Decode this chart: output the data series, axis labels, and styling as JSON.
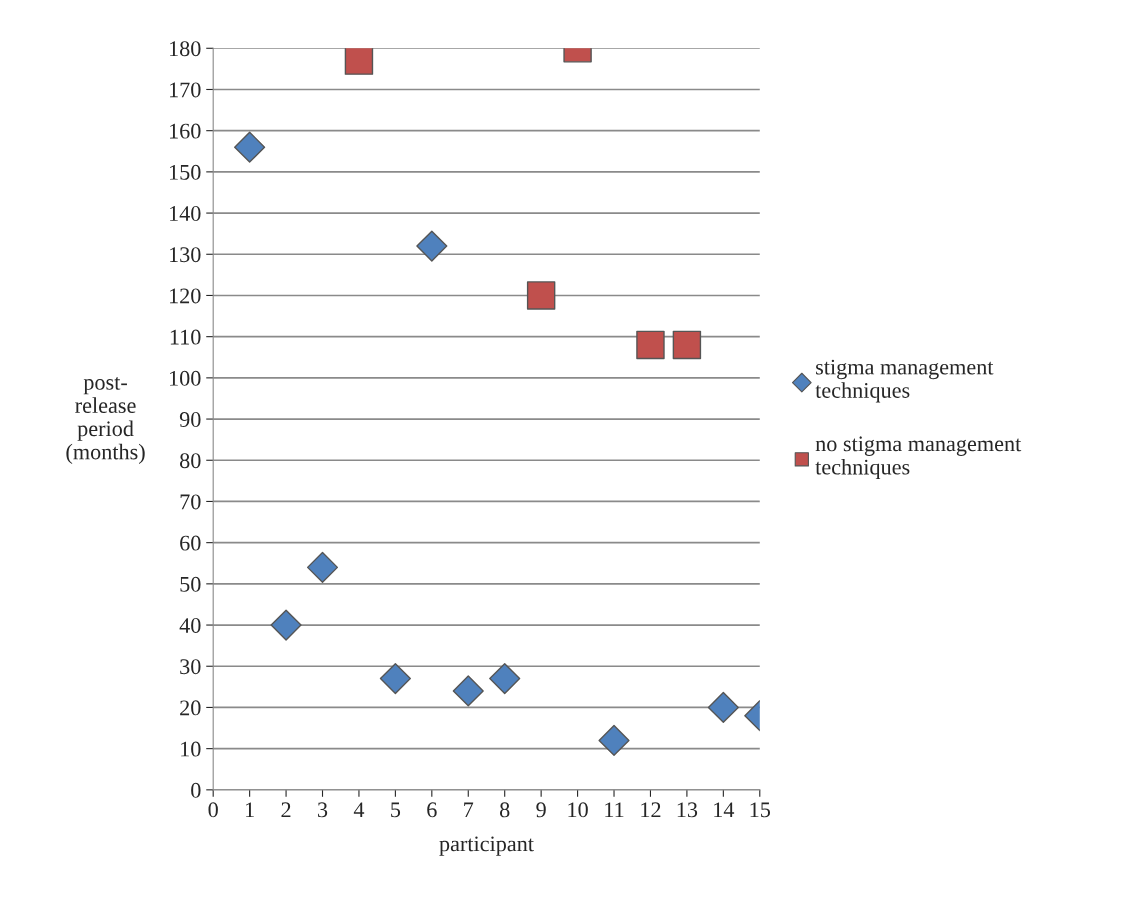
{
  "chart_data": {
    "type": "scatter",
    "xlabel": "participant",
    "ylabel": "post-\nrelease\nperiod\n(months)",
    "xlim": [
      0,
      15
    ],
    "xticks": [
      0,
      1,
      2,
      3,
      4,
      5,
      6,
      7,
      8,
      9,
      10,
      11,
      12,
      13,
      14,
      15
    ],
    "ylim": [
      0,
      180
    ],
    "yticks": [
      0,
      10,
      20,
      30,
      40,
      50,
      60,
      70,
      80,
      90,
      100,
      110,
      120,
      130,
      140,
      150,
      160,
      170,
      180
    ],
    "grid": "y",
    "legend": "right",
    "series": [
      {
        "name": "stigma management techniques",
        "color": "#4f81bd",
        "marker": "diamond",
        "x": [
          1,
          2,
          3,
          5,
          6,
          7,
          8,
          11,
          14,
          15
        ],
        "values": [
          156,
          40,
          54,
          27,
          132,
          24,
          27,
          12,
          20,
          18
        ]
      },
      {
        "name": "no stigma management techniques",
        "color": "#c0504d",
        "marker": "square",
        "x": [
          4,
          9,
          10,
          12,
          13
        ],
        "values": [
          177,
          120,
          180,
          108,
          108
        ]
      }
    ]
  }
}
